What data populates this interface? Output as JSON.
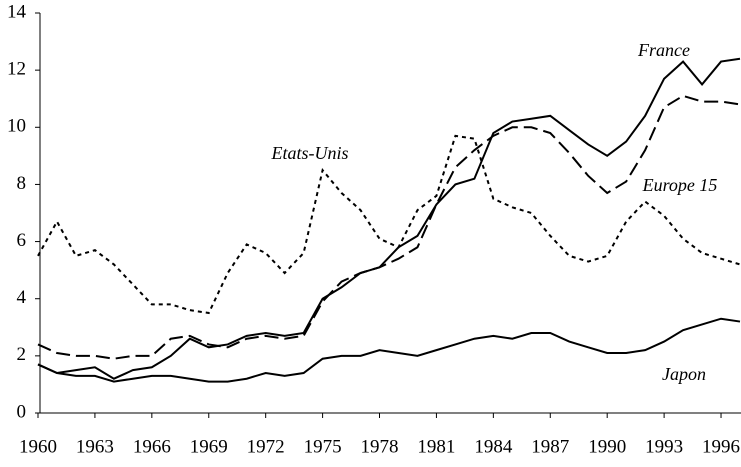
{
  "chart_data": {
    "type": "line",
    "x": [
      1960,
      1961,
      1962,
      1963,
      1964,
      1965,
      1966,
      1967,
      1968,
      1969,
      1970,
      1971,
      1972,
      1973,
      1974,
      1975,
      1976,
      1977,
      1978,
      1979,
      1980,
      1981,
      1982,
      1983,
      1984,
      1985,
      1986,
      1987,
      1988,
      1989,
      1990,
      1991,
      1992,
      1993,
      1994,
      1995,
      1996,
      1997
    ],
    "series": [
      {
        "name": "France",
        "color": "#000000",
        "dash": "solid",
        "values": [
          1.7,
          1.4,
          1.5,
          1.6,
          1.2,
          1.5,
          1.6,
          2.0,
          2.6,
          2.3,
          2.4,
          2.7,
          2.8,
          2.7,
          2.8,
          4.0,
          4.4,
          4.9,
          5.1,
          5.8,
          6.2,
          7.3,
          8.0,
          8.2,
          9.8,
          10.2,
          10.3,
          10.4,
          9.9,
          9.4,
          9.0,
          9.5,
          10.4,
          11.7,
          12.3,
          11.5,
          12.3,
          12.4
        ]
      },
      {
        "name": "Europe 15",
        "color": "#000000",
        "dash": "dashed",
        "values": [
          2.4,
          2.1,
          2.0,
          2.0,
          1.9,
          2.0,
          2.0,
          2.6,
          2.7,
          2.4,
          2.3,
          2.6,
          2.7,
          2.6,
          2.7,
          3.9,
          4.6,
          4.9,
          5.1,
          5.4,
          5.8,
          7.3,
          8.6,
          9.2,
          9.7,
          10.0,
          10.0,
          9.8,
          9.1,
          8.3,
          7.7,
          8.1,
          9.2,
          10.7,
          11.1,
          10.9,
          10.9,
          10.8
        ]
      },
      {
        "name": "Etats-Unis",
        "color": "#000000",
        "dash": "dotted",
        "values": [
          5.5,
          6.7,
          5.5,
          5.7,
          5.2,
          4.5,
          3.8,
          3.8,
          3.6,
          3.5,
          4.9,
          5.9,
          5.6,
          4.9,
          5.6,
          8.5,
          7.7,
          7.1,
          6.1,
          5.8,
          7.1,
          7.6,
          9.7,
          9.6,
          7.5,
          7.2,
          7.0,
          6.2,
          5.5,
          5.3,
          5.5,
          6.7,
          7.4,
          6.9,
          6.1,
          5.6,
          5.4,
          5.2
        ]
      },
      {
        "name": "Japon",
        "color": "#000000",
        "dash": "solid",
        "values": [
          1.7,
          1.4,
          1.3,
          1.3,
          1.1,
          1.2,
          1.3,
          1.3,
          1.2,
          1.1,
          1.1,
          1.2,
          1.4,
          1.3,
          1.4,
          1.9,
          2.0,
          2.0,
          2.2,
          2.1,
          2.0,
          2.2,
          2.4,
          2.6,
          2.7,
          2.6,
          2.8,
          2.8,
          2.5,
          2.3,
          2.1,
          2.1,
          2.2,
          2.5,
          2.9,
          3.1,
          3.3,
          3.2
        ]
      }
    ],
    "xlim": [
      1960,
      1997
    ],
    "xticks": [
      1960,
      1963,
      1966,
      1969,
      1972,
      1975,
      1978,
      1981,
      1984,
      1987,
      1990,
      1993,
      1996
    ],
    "ylim": [
      0,
      14
    ],
    "yticks": [
      0,
      2,
      4,
      6,
      8,
      10,
      12,
      14
    ],
    "grid": false
  }
}
